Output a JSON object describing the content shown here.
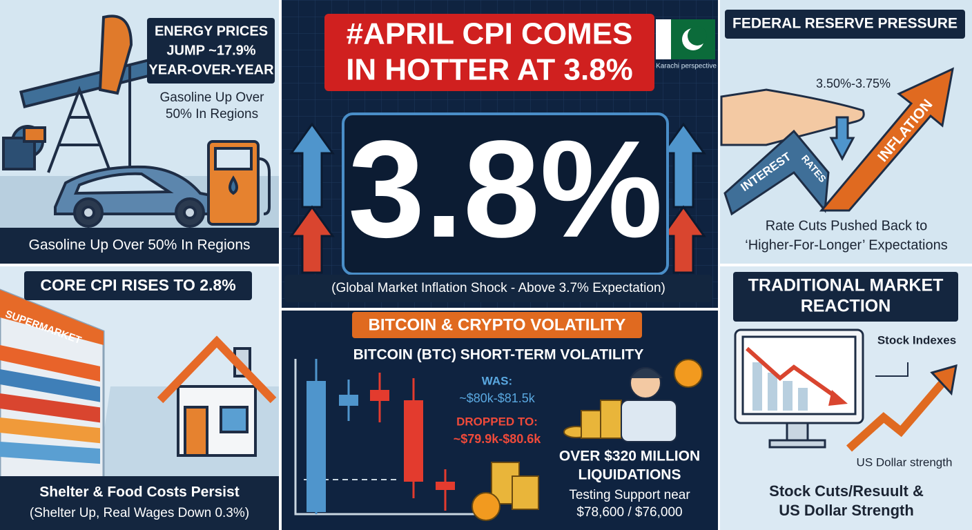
{
  "energy_panel": {
    "title": [
      "ENERGY PRICES",
      "JUMP ~17.9%",
      "YEAR-OVER-YEAR"
    ],
    "note": [
      "Gasoline Up Over",
      "50% In Regions"
    ],
    "caption": "Gasoline Up Over 50% In Regions"
  },
  "core_cpi_panel": {
    "title": "CORE CPI RISES TO 2.8%",
    "store_sign": "SUPERMARKET",
    "caption": [
      "Shelter & Food Costs Persist",
      "(Shelter Up, Real Wages Down 0.3%)"
    ]
  },
  "headline_panel": {
    "banner": [
      "#APRIL CPI COMES",
      "IN HOTTER AT 3.8%"
    ],
    "flag_caption": "Karachi perspective",
    "big_figure": "3.8%",
    "subtitle": "(Global Market Inflation Shock - Above 3.7% Expectation)"
  },
  "crypto_panel": {
    "title": "BITCOIN & CRYPTO VOLATILITY",
    "subtitle": "BITCOIN (BTC) SHORT-TERM VOLATILITY",
    "was_label": "WAS:",
    "was_range": "~$80k-$81.5k",
    "dropped_label": "DROPPED TO:",
    "dropped_range": "~$79.9k-$80.6k",
    "liquidations": [
      "OVER $320 MILLION",
      "LIQUIDATIONS"
    ],
    "support": [
      "Testing Support near",
      "$78,600 / $76,000"
    ]
  },
  "fed_panel": {
    "title": "FEDERAL RESERVE PRESSURE",
    "rate_range": "3.50%-3.75%",
    "arrow_labels": [
      "INTEREST",
      "RATES",
      "INFLATION"
    ],
    "caption": [
      "Rate Cuts Pushed Back to",
      "‘Higher-For-Longer’ Expectations"
    ]
  },
  "market_panel": {
    "title": [
      "TRADITIONAL MARKET",
      "REACTION"
    ],
    "stock_label": "Stock Indexes",
    "dollar_label": "US Dollar strength",
    "caption": [
      "Stock Cuts/Resuult &",
      "US Dollar Strength"
    ]
  }
}
